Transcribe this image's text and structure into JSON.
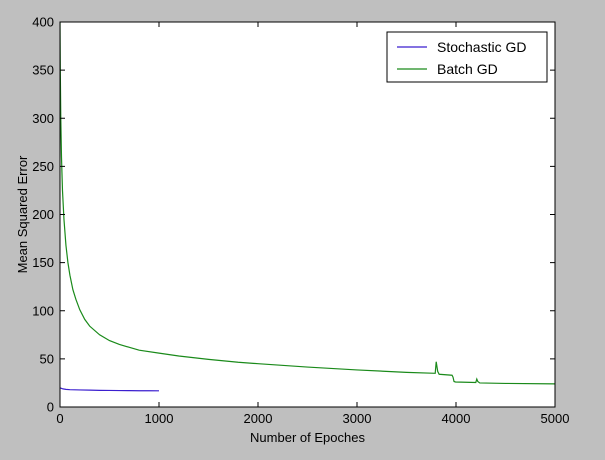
{
  "chart_data": {
    "type": "line",
    "title": "",
    "xlabel": "Number of Epoches",
    "ylabel": "Mean Squared Error",
    "xlim": [
      0,
      5000
    ],
    "ylim": [
      0,
      400
    ],
    "xticks": [
      0,
      1000,
      2000,
      3000,
      4000,
      5000
    ],
    "yticks": [
      0,
      50,
      100,
      150,
      200,
      250,
      300,
      350,
      400
    ],
    "grid": false,
    "legend_position": "top-right",
    "background": "#bfbfbf",
    "plot_background": "#ffffff",
    "series": [
      {
        "name": "Stochastic GD",
        "color": "#3b1fcf",
        "x": [
          0,
          10,
          30,
          60,
          100,
          200,
          300,
          400,
          500,
          600,
          700,
          800,
          900,
          1000
        ],
        "y": [
          20,
          19.5,
          18.8,
          18.3,
          18,
          17.7,
          17.5,
          17.3,
          17.2,
          17.1,
          17,
          16.9,
          16.9,
          16.8
        ]
      },
      {
        "name": "Batch GD",
        "color": "#1a8a1a",
        "x": [
          0,
          3,
          8,
          15,
          25,
          40,
          60,
          80,
          100,
          130,
          160,
          200,
          250,
          300,
          400,
          500,
          600,
          700,
          800,
          1000,
          1200,
          1500,
          1800,
          2000,
          2500,
          3000,
          3500,
          3790,
          3800,
          3815,
          3830,
          3960,
          3970,
          3980,
          3995,
          4200,
          4210,
          4220,
          4240,
          4500,
          5000
        ],
        "y": [
          400,
          350,
          300,
          260,
          225,
          195,
          168,
          150,
          137,
          122,
          112,
          101,
          91,
          84,
          75,
          69,
          65,
          62,
          59,
          56,
          53,
          49.5,
          46.5,
          45,
          41.5,
          38.5,
          36,
          35,
          47,
          37,
          34,
          33,
          31,
          26.5,
          26,
          25.5,
          29,
          26.5,
          25,
          24.5,
          24
        ]
      }
    ]
  }
}
